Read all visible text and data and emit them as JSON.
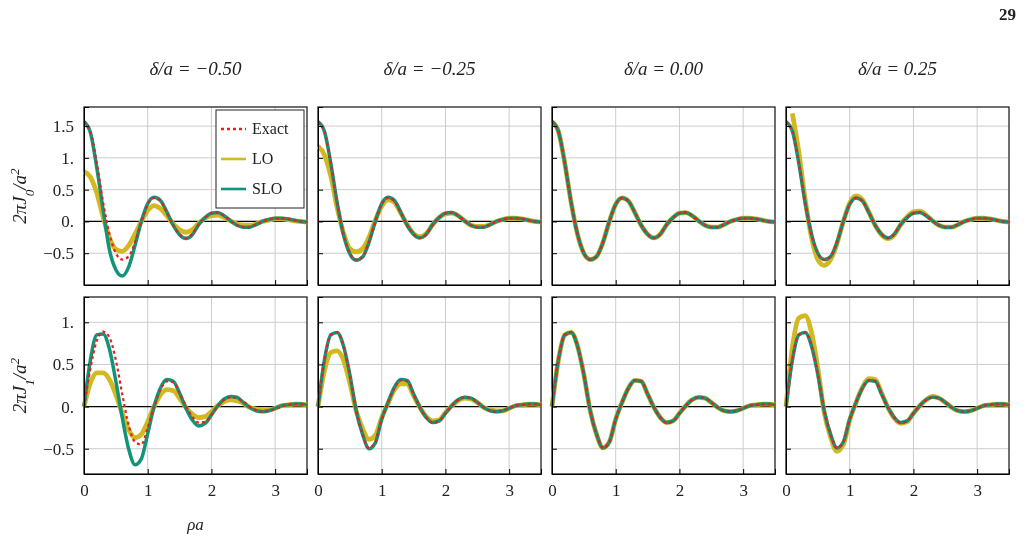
{
  "chart_data": [
    {
      "type": "line",
      "title": "δ/a = −0.50",
      "ylabel": "2πJ$_{0}$/a$^{2}$",
      "annotations": [
        "29"
      ],
      "legend": "top right",
      "grid": true,
      "tick_labels": "y",
      "x": [
        0,
        0.1,
        0.2,
        0.3,
        0.4,
        0.5,
        0.6,
        0.7,
        0.8,
        0.9,
        1.0,
        1.1,
        1.2,
        1.3,
        1.4,
        1.5,
        1.6,
        1.7,
        1.8,
        1.9,
        2.0,
        2.1,
        2.2,
        2.3,
        2.4,
        2.5,
        2.6,
        2.7,
        2.8,
        2.9,
        3.0,
        3.1,
        3.2,
        3.3,
        3.4,
        3.5
      ],
      "xlim": [
        0,
        3.5
      ],
      "ylim": [
        -1,
        1.8
      ],
      "xticks": [
        {
          "value": 0,
          "label": null
        },
        {
          "value": 1,
          "label": null
        },
        {
          "value": 2,
          "label": null
        },
        {
          "value": 3,
          "label": null
        }
      ],
      "yticks": [
        {
          "value": -0.5,
          "label": "−0.5"
        },
        {
          "value": 0,
          "label": "0."
        },
        {
          "value": 0.5,
          "label": "0.5"
        },
        {
          "value": 1,
          "label": "1."
        },
        {
          "value": 1.5,
          "label": "1.5"
        }
      ],
      "ref_lines": [
        {
          "axis": "y",
          "value": 0,
          "color": "#000000"
        }
      ],
      "series": [
        {
          "name": "Exact",
          "color": "#e8201c",
          "line_style": "dotted",
          "values": [
            1.57,
            1.42,
            0.92,
            0.3,
            -0.2,
            -0.5,
            -0.6,
            -0.55,
            -0.33,
            0,
            0.27,
            0.37,
            0.32,
            0.14,
            -0.06,
            -0.2,
            -0.26,
            -0.2,
            -0.05,
            0.06,
            0.13,
            0.14,
            0.09,
            0.01,
            -0.06,
            -0.09,
            -0.09,
            -0.05,
            0,
            0.03,
            0.05,
            0.05,
            0.04,
            0.02,
            0,
            -0.01
          ]
        },
        {
          "name": "LO",
          "color": "#d4b820",
          "line_style": "solid",
          "values": [
            0.78,
            0.7,
            0.45,
            0.07,
            -0.26,
            -0.44,
            -0.47,
            -0.38,
            -0.2,
            0,
            0.17,
            0.25,
            0.2,
            0.09,
            -0.04,
            -0.13,
            -0.17,
            -0.13,
            -0.03,
            0.05,
            0.09,
            0.1,
            0.06,
            0.01,
            -0.04,
            -0.06,
            -0.06,
            -0.04,
            0,
            0.02,
            0.04,
            0.04,
            0.03,
            0.01,
            0,
            -0.01
          ]
        },
        {
          "name": "SLO",
          "color": "#12937a",
          "line_style": "solid",
          "values": [
            1.57,
            1.4,
            0.85,
            0.18,
            -0.45,
            -0.76,
            -0.86,
            -0.72,
            -0.38,
            0,
            0.28,
            0.38,
            0.33,
            0.15,
            -0.06,
            -0.21,
            -0.27,
            -0.21,
            -0.05,
            0.06,
            0.13,
            0.14,
            0.09,
            0.01,
            -0.06,
            -0.09,
            -0.09,
            -0.05,
            0,
            0.03,
            0.05,
            0.05,
            0.04,
            0.02,
            0,
            -0.01
          ]
        }
      ]
    },
    {
      "type": "line",
      "title": "δ/a = −0.25",
      "grid": true,
      "tick_labels": false,
      "x": [
        0,
        0.1,
        0.2,
        0.3,
        0.4,
        0.5,
        0.6,
        0.7,
        0.8,
        0.9,
        1.0,
        1.1,
        1.2,
        1.3,
        1.4,
        1.5,
        1.6,
        1.7,
        1.8,
        1.9,
        2.0,
        2.1,
        2.2,
        2.3,
        2.4,
        2.5,
        2.6,
        2.7,
        2.8,
        2.9,
        3.0,
        3.1,
        3.2,
        3.3,
        3.4,
        3.5
      ],
      "xlim": [
        0,
        3.5
      ],
      "ylim": [
        -1,
        1.8
      ],
      "xticks": [
        {
          "value": 0,
          "label": null
        },
        {
          "value": 1,
          "label": null
        },
        {
          "value": 2,
          "label": null
        },
        {
          "value": 3,
          "label": null
        }
      ],
      "yticks": [
        {
          "value": -0.5,
          "label": null
        },
        {
          "value": 0,
          "label": null
        },
        {
          "value": 0.5,
          "label": null
        },
        {
          "value": 1,
          "label": null
        },
        {
          "value": 1.5,
          "label": null
        }
      ],
      "ref_lines": [
        {
          "axis": "y",
          "value": 0,
          "color": "#000000"
        }
      ],
      "series": [
        {
          "color": "#e8201c",
          "line_style": "dotted",
          "values": [
            1.57,
            1.42,
            0.92,
            0.3,
            -0.2,
            -0.5,
            -0.6,
            -0.55,
            -0.33,
            0,
            0.27,
            0.37,
            0.32,
            0.14,
            -0.06,
            -0.2,
            -0.26,
            -0.2,
            -0.05,
            0.06,
            0.13,
            0.14,
            0.09,
            0.01,
            -0.06,
            -0.09,
            -0.09,
            -0.05,
            0,
            0.03,
            0.05,
            0.05,
            0.04,
            0.02,
            0,
            -0.01
          ]
        },
        {
          "color": "#d4b820",
          "line_style": "solid",
          "values": [
            1.18,
            1.05,
            0.72,
            0.22,
            -0.18,
            -0.43,
            -0.48,
            -0.43,
            -0.25,
            0.02,
            0.24,
            0.34,
            0.3,
            0.13,
            -0.05,
            -0.19,
            -0.24,
            -0.19,
            -0.05,
            0.06,
            0.12,
            0.13,
            0.09,
            0.01,
            -0.06,
            -0.08,
            -0.08,
            -0.05,
            0,
            0.03,
            0.05,
            0.05,
            0.04,
            0.02,
            0,
            -0.01
          ]
        },
        {
          "color": "#12937a",
          "line_style": "solid",
          "values": [
            1.57,
            1.42,
            0.92,
            0.3,
            -0.21,
            -0.51,
            -0.61,
            -0.56,
            -0.33,
            0,
            0.28,
            0.38,
            0.33,
            0.14,
            -0.06,
            -0.2,
            -0.26,
            -0.2,
            -0.05,
            0.06,
            0.13,
            0.14,
            0.09,
            0.01,
            -0.06,
            -0.09,
            -0.09,
            -0.05,
            0,
            0.03,
            0.05,
            0.05,
            0.04,
            0.02,
            0,
            -0.01
          ]
        }
      ]
    },
    {
      "type": "line",
      "title": "δ/a = 0.00",
      "grid": true,
      "tick_labels": false,
      "x": [
        0,
        0.1,
        0.2,
        0.3,
        0.4,
        0.5,
        0.6,
        0.7,
        0.8,
        0.9,
        1.0,
        1.1,
        1.2,
        1.3,
        1.4,
        1.5,
        1.6,
        1.7,
        1.8,
        1.9,
        2.0,
        2.1,
        2.2,
        2.3,
        2.4,
        2.5,
        2.6,
        2.7,
        2.8,
        2.9,
        3.0,
        3.1,
        3.2,
        3.3,
        3.4,
        3.5
      ],
      "xlim": [
        0,
        3.5
      ],
      "ylim": [
        -1,
        1.8
      ],
      "xticks": [
        {
          "value": 0,
          "label": null
        },
        {
          "value": 1,
          "label": null
        },
        {
          "value": 2,
          "label": null
        },
        {
          "value": 3,
          "label": null
        }
      ],
      "yticks": [
        {
          "value": -0.5,
          "label": null
        },
        {
          "value": 0,
          "label": null
        },
        {
          "value": 0.5,
          "label": null
        },
        {
          "value": 1,
          "label": null
        },
        {
          "value": 1.5,
          "label": null
        }
      ],
      "ref_lines": [
        {
          "axis": "y",
          "value": 0,
          "color": "#000000"
        }
      ],
      "series": [
        {
          "color": "#e8201c",
          "line_style": "dotted",
          "values": [
            1.57,
            1.42,
            0.92,
            0.3,
            -0.2,
            -0.5,
            -0.6,
            -0.55,
            -0.33,
            0,
            0.27,
            0.37,
            0.32,
            0.14,
            -0.06,
            -0.2,
            -0.26,
            -0.2,
            -0.05,
            0.06,
            0.13,
            0.14,
            0.09,
            0.01,
            -0.06,
            -0.09,
            -0.09,
            -0.05,
            0,
            0.03,
            0.05,
            0.05,
            0.04,
            0.02,
            0,
            -0.01
          ]
        },
        {
          "color": "#d4b820",
          "line_style": "solid",
          "values": [
            1.57,
            1.42,
            0.92,
            0.3,
            -0.2,
            -0.5,
            -0.6,
            -0.55,
            -0.33,
            0,
            0.27,
            0.37,
            0.32,
            0.14,
            -0.06,
            -0.2,
            -0.26,
            -0.2,
            -0.05,
            0.06,
            0.13,
            0.14,
            0.09,
            0.01,
            -0.06,
            -0.09,
            -0.09,
            -0.05,
            0,
            0.03,
            0.05,
            0.05,
            0.04,
            0.02,
            0,
            -0.01
          ]
        },
        {
          "color": "#12937a",
          "line_style": "solid",
          "values": [
            1.57,
            1.42,
            0.92,
            0.3,
            -0.2,
            -0.5,
            -0.6,
            -0.55,
            -0.33,
            0,
            0.27,
            0.37,
            0.32,
            0.14,
            -0.06,
            -0.2,
            -0.26,
            -0.2,
            -0.05,
            0.06,
            0.13,
            0.14,
            0.09,
            0.01,
            -0.06,
            -0.09,
            -0.09,
            -0.05,
            0,
            0.03,
            0.05,
            0.05,
            0.04,
            0.02,
            0,
            -0.01
          ]
        }
      ]
    },
    {
      "type": "line",
      "title": "δ/a = 0.25",
      "grid": true,
      "tick_labels": false,
      "x": [
        0,
        0.1,
        0.2,
        0.3,
        0.4,
        0.5,
        0.6,
        0.7,
        0.8,
        0.9,
        1.0,
        1.1,
        1.2,
        1.3,
        1.4,
        1.5,
        1.6,
        1.7,
        1.8,
        1.9,
        2.0,
        2.1,
        2.2,
        2.3,
        2.4,
        2.5,
        2.6,
        2.7,
        2.8,
        2.9,
        3.0,
        3.1,
        3.2,
        3.3,
        3.4,
        3.5
      ],
      "xlim": [
        0,
        3.5
      ],
      "ylim": [
        -1,
        1.8
      ],
      "xticks": [
        {
          "value": 0,
          "label": null
        },
        {
          "value": 1,
          "label": null
        },
        {
          "value": 2,
          "label": null
        },
        {
          "value": 3,
          "label": null
        }
      ],
      "yticks": [
        {
          "value": -0.5,
          "label": null
        },
        {
          "value": 0,
          "label": null
        },
        {
          "value": 0.5,
          "label": null
        },
        {
          "value": 1,
          "label": null
        },
        {
          "value": 1.5,
          "label": null
        }
      ],
      "ref_lines": [
        {
          "axis": "y",
          "value": 0,
          "color": "#000000"
        }
      ],
      "series": [
        {
          "color": "#e8201c",
          "line_style": "dotted",
          "values": [
            1.57,
            1.42,
            0.92,
            0.3,
            -0.2,
            -0.5,
            -0.6,
            -0.55,
            -0.33,
            0,
            0.27,
            0.37,
            0.32,
            0.14,
            -0.06,
            -0.2,
            -0.26,
            -0.2,
            -0.05,
            0.06,
            0.13,
            0.14,
            0.09,
            0.01,
            -0.06,
            -0.09,
            -0.09,
            -0.05,
            0,
            0.03,
            0.05,
            0.05,
            0.04,
            0.02,
            0,
            -0.01
          ]
        },
        {
          "color": "#d4b820",
          "line_style": "solid",
          "values": [
            null,
            1.7,
            1.1,
            0.35,
            -0.25,
            -0.6,
            -0.69,
            -0.6,
            -0.35,
            0,
            0.29,
            0.4,
            0.34,
            0.15,
            -0.06,
            -0.21,
            -0.27,
            -0.21,
            -0.05,
            0.07,
            0.15,
            0.16,
            0.1,
            0.01,
            -0.06,
            -0.09,
            -0.09,
            -0.05,
            0,
            0.03,
            0.05,
            0.05,
            0.04,
            0.02,
            0,
            -0.01
          ]
        },
        {
          "color": "#12937a",
          "line_style": "solid",
          "values": [
            1.57,
            1.42,
            0.92,
            0.3,
            -0.2,
            -0.5,
            -0.6,
            -0.55,
            -0.33,
            0,
            0.27,
            0.37,
            0.32,
            0.14,
            -0.06,
            -0.2,
            -0.26,
            -0.2,
            -0.05,
            0.06,
            0.13,
            0.14,
            0.09,
            0.01,
            -0.06,
            -0.09,
            -0.09,
            -0.05,
            0,
            0.03,
            0.05,
            0.05,
            0.04,
            0.02,
            0,
            -0.01
          ]
        }
      ]
    },
    {
      "type": "line",
      "ylabel": "2πJ$_{1}$/a$^{2}$",
      "xlabel": "ρa",
      "grid": true,
      "x": [
        0,
        0.1,
        0.2,
        0.3,
        0.4,
        0.5,
        0.6,
        0.7,
        0.8,
        0.9,
        1.0,
        1.1,
        1.2,
        1.3,
        1.4,
        1.5,
        1.6,
        1.7,
        1.8,
        1.9,
        2.0,
        2.1,
        2.2,
        2.3,
        2.4,
        2.5,
        2.6,
        2.7,
        2.8,
        2.9,
        3.0,
        3.1,
        3.2,
        3.3,
        3.4,
        3.5
      ],
      "xlim": [
        0,
        3.5
      ],
      "ylim": [
        -0.8,
        1.3
      ],
      "xticks": [
        0,
        1,
        2,
        3
      ],
      "yticks": [
        {
          "value": -0.5,
          "label": "−0.5"
        },
        {
          "value": 0,
          "label": "0."
        },
        {
          "value": 0.5,
          "label": "0.5"
        },
        {
          "value": 1,
          "label": "1."
        }
      ],
      "ref_lines": [
        {
          "axis": "y",
          "value": 0,
          "color": "#000000"
        }
      ],
      "series": [
        {
          "color": "#e8201c",
          "line_style": "dotted",
          "values": [
            0,
            0.45,
            0.78,
            0.89,
            0.82,
            0.55,
            0.15,
            -0.22,
            -0.42,
            -0.45,
            -0.25,
            0.0,
            0.2,
            0.3,
            0.29,
            0.16,
            0.01,
            -0.12,
            -0.19,
            -0.18,
            -0.1,
            0.0,
            0.08,
            0.11,
            0.1,
            0.06,
            0,
            -0.04,
            -0.06,
            -0.05,
            -0.03,
            0,
            0.02,
            0.03,
            0.03,
            0.02
          ]
        },
        {
          "color": "#d4b820",
          "line_style": "solid",
          "values": [
            0,
            0.28,
            0.4,
            0.4,
            0.32,
            0.14,
            -0.08,
            -0.27,
            -0.37,
            -0.33,
            -0.18,
            0.0,
            0.14,
            0.2,
            0.19,
            0.1,
            -0.01,
            -0.09,
            -0.13,
            -0.12,
            -0.06,
            0.01,
            0.06,
            0.08,
            0.07,
            0.04,
            -0.01,
            -0.03,
            -0.04,
            -0.04,
            -0.02,
            0.01,
            0.02,
            0.03,
            0.03,
            0.02
          ]
        },
        {
          "color": "#12937a",
          "line_style": "solid",
          "values": [
            0,
            0.55,
            0.85,
            0.86,
            0.68,
            0.3,
            -0.13,
            -0.5,
            -0.69,
            -0.62,
            -0.32,
            0.0,
            0.22,
            0.32,
            0.3,
            0.16,
            -0.02,
            -0.16,
            -0.23,
            -0.2,
            -0.1,
            0.01,
            0.09,
            0.12,
            0.11,
            0.05,
            -0.01,
            -0.05,
            -0.06,
            -0.05,
            -0.02,
            0.01,
            0.02,
            0.03,
            0.03,
            0.02
          ]
        }
      ]
    },
    {
      "type": "line",
      "grid": true,
      "tick_labels": "x",
      "x": [
        0,
        0.1,
        0.2,
        0.3,
        0.4,
        0.5,
        0.6,
        0.7,
        0.8,
        0.9,
        1.0,
        1.1,
        1.2,
        1.3,
        1.4,
        1.5,
        1.6,
        1.7,
        1.8,
        1.9,
        2.0,
        2.1,
        2.2,
        2.3,
        2.4,
        2.5,
        2.6,
        2.7,
        2.8,
        2.9,
        3.0,
        3.1,
        3.2,
        3.3,
        3.4,
        3.5
      ],
      "xlim": [
        0,
        3.5
      ],
      "ylim": [
        -0.8,
        1.3
      ],
      "xticks": [
        0,
        1,
        2,
        3
      ],
      "yticks": [
        {
          "value": -0.5,
          "label": null
        },
        {
          "value": 0,
          "label": null
        },
        {
          "value": 0.5,
          "label": null
        },
        {
          "value": 1,
          "label": null
        }
      ],
      "ref_lines": [
        {
          "axis": "y",
          "value": 0,
          "color": "#000000"
        }
      ],
      "series": [
        {
          "color": "#e8201c",
          "line_style": "dotted",
          "values": [
            0,
            0.55,
            0.85,
            0.88,
            0.72,
            0.38,
            -0.05,
            -0.33,
            -0.49,
            -0.42,
            -0.15,
            0.05,
            0.22,
            0.31,
            0.3,
            0.15,
            -0.01,
            -0.13,
            -0.19,
            -0.17,
            -0.08,
            0.01,
            0.08,
            0.11,
            0.1,
            0.05,
            -0.01,
            -0.05,
            -0.06,
            -0.05,
            -0.02,
            0.01,
            0.02,
            0.03,
            0.03,
            0.02
          ]
        },
        {
          "color": "#d4b820",
          "line_style": "solid",
          "values": [
            0,
            0.42,
            0.64,
            0.66,
            0.55,
            0.28,
            -0.05,
            -0.26,
            -0.39,
            -0.34,
            -0.13,
            0.04,
            0.2,
            0.27,
            0.27,
            0.13,
            -0.01,
            -0.12,
            -0.17,
            -0.16,
            -0.07,
            0.01,
            0.07,
            0.1,
            0.09,
            0.05,
            -0.01,
            -0.04,
            -0.05,
            -0.05,
            -0.02,
            0.01,
            0.02,
            0.03,
            0.03,
            0.02
          ]
        },
        {
          "color": "#12937a",
          "line_style": "solid",
          "values": [
            0,
            0.55,
            0.85,
            0.88,
            0.72,
            0.38,
            -0.05,
            -0.33,
            -0.5,
            -0.43,
            -0.15,
            0.05,
            0.23,
            0.32,
            0.31,
            0.15,
            -0.01,
            -0.13,
            -0.19,
            -0.17,
            -0.08,
            0.01,
            0.08,
            0.11,
            0.1,
            0.05,
            -0.01,
            -0.05,
            -0.06,
            -0.05,
            -0.02,
            0.01,
            0.02,
            0.03,
            0.03,
            0.02
          ]
        }
      ]
    },
    {
      "type": "line",
      "grid": true,
      "tick_labels": "x",
      "x": [
        0,
        0.1,
        0.2,
        0.3,
        0.4,
        0.5,
        0.6,
        0.7,
        0.8,
        0.9,
        1.0,
        1.1,
        1.2,
        1.3,
        1.4,
        1.5,
        1.6,
        1.7,
        1.8,
        1.9,
        2.0,
        2.1,
        2.2,
        2.3,
        2.4,
        2.5,
        2.6,
        2.7,
        2.8,
        2.9,
        3.0,
        3.1,
        3.2,
        3.3,
        3.4,
        3.5
      ],
      "xlim": [
        0,
        3.5
      ],
      "ylim": [
        -0.8,
        1.3
      ],
      "xticks": [
        0,
        1,
        2,
        3
      ],
      "yticks": [
        {
          "value": -0.5,
          "label": null
        },
        {
          "value": 0,
          "label": null
        },
        {
          "value": 0.5,
          "label": null
        },
        {
          "value": 1,
          "label": null
        }
      ],
      "ref_lines": [
        {
          "axis": "y",
          "value": 0,
          "color": "#000000"
        }
      ],
      "series": [
        {
          "color": "#e8201c",
          "line_style": "dotted",
          "values": [
            0,
            0.55,
            0.85,
            0.88,
            0.72,
            0.38,
            -0.05,
            -0.33,
            -0.49,
            -0.42,
            -0.15,
            0.05,
            0.22,
            0.31,
            0.3,
            0.15,
            -0.01,
            -0.13,
            -0.19,
            -0.17,
            -0.08,
            0.01,
            0.08,
            0.11,
            0.1,
            0.05,
            -0.01,
            -0.05,
            -0.06,
            -0.05,
            -0.02,
            0.01,
            0.02,
            0.03,
            0.03,
            0.02
          ]
        },
        {
          "color": "#d4b820",
          "line_style": "solid",
          "values": [
            0,
            0.55,
            0.85,
            0.88,
            0.72,
            0.38,
            -0.05,
            -0.33,
            -0.49,
            -0.42,
            -0.15,
            0.05,
            0.22,
            0.31,
            0.3,
            0.15,
            -0.01,
            -0.13,
            -0.19,
            -0.17,
            -0.08,
            0.01,
            0.08,
            0.11,
            0.1,
            0.05,
            -0.01,
            -0.05,
            -0.06,
            -0.05,
            -0.02,
            0.01,
            0.02,
            0.03,
            0.03,
            0.02
          ]
        },
        {
          "color": "#12937a",
          "line_style": "solid",
          "values": [
            0,
            0.55,
            0.85,
            0.88,
            0.72,
            0.38,
            -0.05,
            -0.33,
            -0.49,
            -0.42,
            -0.15,
            0.05,
            0.22,
            0.31,
            0.3,
            0.15,
            -0.01,
            -0.13,
            -0.19,
            -0.17,
            -0.08,
            0.01,
            0.08,
            0.11,
            0.1,
            0.05,
            -0.01,
            -0.05,
            -0.06,
            -0.05,
            -0.02,
            0.01,
            0.02,
            0.03,
            0.03,
            0.02
          ]
        }
      ]
    },
    {
      "type": "line",
      "grid": true,
      "tick_labels": "x",
      "x": [
        0,
        0.1,
        0.2,
        0.3,
        0.4,
        0.5,
        0.6,
        0.7,
        0.8,
        0.9,
        1.0,
        1.1,
        1.2,
        1.3,
        1.4,
        1.5,
        1.6,
        1.7,
        1.8,
        1.9,
        2.0,
        2.1,
        2.2,
        2.3,
        2.4,
        2.5,
        2.6,
        2.7,
        2.8,
        2.9,
        3.0,
        3.1,
        3.2,
        3.3,
        3.4,
        3.5
      ],
      "xlim": [
        0,
        3.5
      ],
      "ylim": [
        -0.8,
        1.3
      ],
      "xticks": [
        0,
        1,
        2,
        3
      ],
      "yticks": [
        {
          "value": -0.5,
          "label": null
        },
        {
          "value": 0,
          "label": null
        },
        {
          "value": 0.5,
          "label": null
        },
        {
          "value": 1,
          "label": null
        }
      ],
      "ref_lines": [
        {
          "axis": "y",
          "value": 0,
          "color": "#000000"
        }
      ],
      "series": [
        {
          "color": "#e8201c",
          "line_style": "dotted",
          "values": [
            0,
            0.55,
            0.85,
            0.88,
            0.72,
            0.38,
            -0.05,
            -0.33,
            -0.49,
            -0.42,
            -0.15,
            0.05,
            0.22,
            0.31,
            0.3,
            0.15,
            -0.01,
            -0.13,
            -0.19,
            -0.17,
            -0.08,
            0.01,
            0.08,
            0.11,
            0.1,
            0.05,
            -0.01,
            -0.05,
            -0.06,
            -0.05,
            -0.02,
            0.01,
            0.02,
            0.03,
            0.03,
            0.02
          ]
        },
        {
          "color": "#d4b820",
          "line_style": "solid",
          "values": [
            0,
            0.7,
            1.05,
            1.08,
            0.88,
            0.45,
            -0.07,
            -0.36,
            -0.53,
            -0.45,
            -0.16,
            0.05,
            0.23,
            0.33,
            0.32,
            0.16,
            -0.01,
            -0.14,
            -0.2,
            -0.18,
            -0.08,
            0.01,
            0.08,
            0.12,
            0.1,
            0.05,
            -0.01,
            -0.05,
            -0.06,
            -0.05,
            -0.02,
            0.01,
            0.02,
            0.03,
            0.03,
            0.02
          ]
        },
        {
          "color": "#12937a",
          "line_style": "solid",
          "values": [
            0,
            0.55,
            0.85,
            0.88,
            0.72,
            0.38,
            -0.05,
            -0.33,
            -0.49,
            -0.42,
            -0.15,
            0.05,
            0.22,
            0.31,
            0.3,
            0.15,
            -0.01,
            -0.13,
            -0.19,
            -0.17,
            -0.08,
            0.01,
            0.08,
            0.11,
            0.1,
            0.05,
            -0.01,
            -0.05,
            -0.06,
            -0.05,
            -0.02,
            0.01,
            0.02,
            0.03,
            0.03,
            0.02
          ]
        }
      ]
    }
  ]
}
